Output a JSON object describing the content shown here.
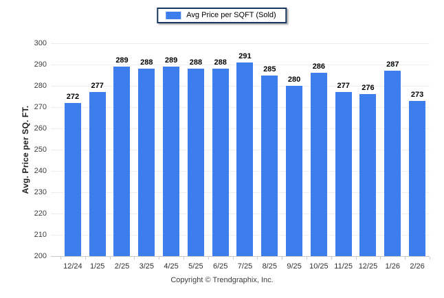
{
  "colors": {
    "bar": "#3E7EEC",
    "legend_border": "#17375E",
    "gridline": "#EDEDED",
    "axis_line": "#C9C9C9"
  },
  "footer": {
    "text": "Copyright © Trendgraphix, Inc."
  },
  "chart_data": {
    "type": "bar",
    "title": "",
    "legend": [
      "Avg Price per SQFT (Sold)"
    ],
    "legend_position": "top-center",
    "xlabel": "",
    "ylabel": "Avg. Price per SQ. FT.",
    "categories": [
      "12/24",
      "1/25",
      "2/25",
      "3/25",
      "4/25",
      "5/25",
      "6/25",
      "7/25",
      "8/25",
      "9/25",
      "10/25",
      "11/25",
      "12/25",
      "1/26",
      "2/26"
    ],
    "values": [
      272,
      277,
      289,
      288,
      289,
      288,
      288,
      291,
      285,
      280,
      286,
      277,
      276,
      287,
      273
    ],
    "ylim": [
      200,
      300
    ],
    "y_ticks": [
      300,
      290,
      280,
      270,
      260,
      250,
      240,
      230,
      220,
      210,
      200
    ],
    "grid": "horizontal"
  }
}
